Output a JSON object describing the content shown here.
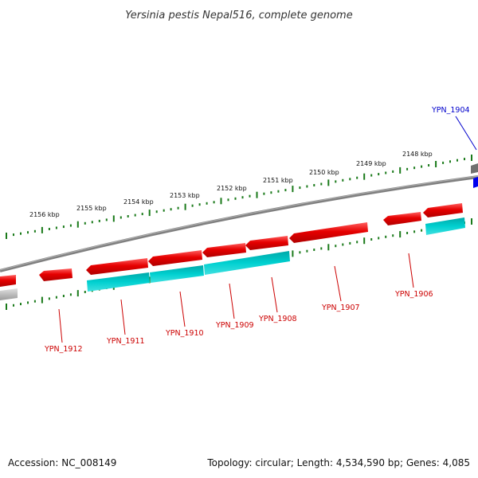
{
  "title": "Yersinia pestis Nepal516, complete genome",
  "footer": {
    "accession": "Accession: NC_008149",
    "summary": "Topology: circular; Length: 4,534,590 bp; Genes: 4,085"
  },
  "colors": {
    "forward_gene": "#e60000",
    "forward_gene_light": "#ff5050",
    "forward_gene_dark": "#a00000",
    "reverse_gene": "#00c8c8",
    "reverse_gene_dark": "#00a0a0",
    "backbone": "#808080",
    "ruler": "#1a7a1a",
    "label_red": "#cc0000",
    "label_blue": "#0000cc"
  },
  "ruler_labels": [
    {
      "text": "2156 kbp"
    },
    {
      "text": "2155 kbp"
    },
    {
      "text": "2154 kbp"
    },
    {
      "text": "2153 kbp"
    },
    {
      "text": "2152 kbp"
    },
    {
      "text": "2151 kbp"
    },
    {
      "text": "2150 kbp"
    },
    {
      "text": "2149 kbp"
    },
    {
      "text": "2148 kbp"
    }
  ],
  "gene_labels": [
    {
      "name": "YPN_1904"
    },
    {
      "name": "YPN_1906"
    },
    {
      "name": "YPN_1907"
    },
    {
      "name": "YPN_1908"
    },
    {
      "name": "YPN_1909"
    },
    {
      "name": "YPN_1910"
    },
    {
      "name": "YPN_1911"
    },
    {
      "name": "YPN_1912"
    }
  ]
}
